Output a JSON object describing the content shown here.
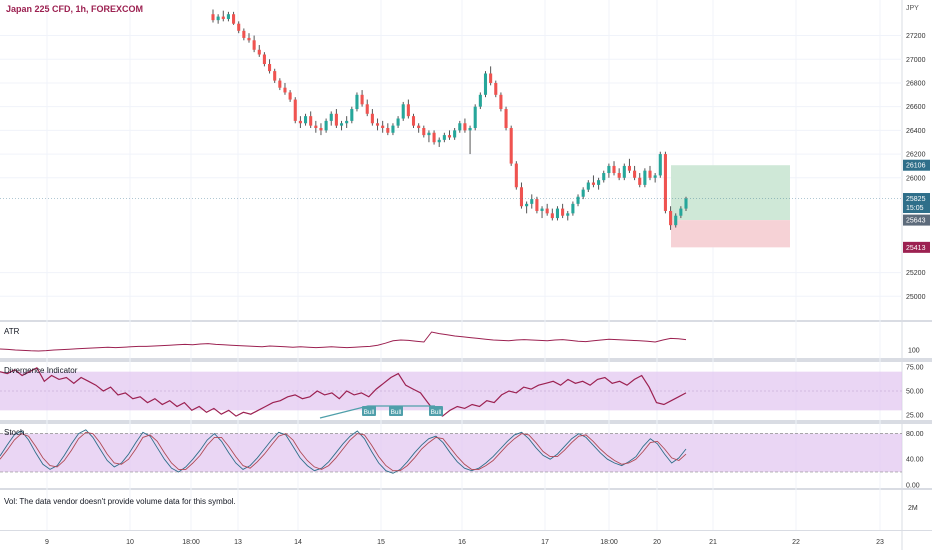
{
  "header": {
    "symbol_title": "Japan 225 CFD, 1h, FOREXCOM",
    "currency": "JPY"
  },
  "panes": {
    "atr": {
      "label": "ATR"
    },
    "divergence": {
      "label": "Divergence Indicator"
    },
    "stoch": {
      "label": "Stoch"
    },
    "volume": {
      "note": "Vol: The data vendor doesn't provide volume data for this symbol."
    }
  },
  "colors": {
    "up": "#26a69a",
    "down": "#ef5350",
    "wick": "#555555",
    "atr_line": "#9c2151",
    "div_line": "#9c2151",
    "stoch_k": "#2f6f8a",
    "stoch_d": "#b04a55",
    "band_fill": "#e1c4f0",
    "tp_zone": "#cfe8d7",
    "sl_zone": "#f6d2d6",
    "bull_label": "#4f9faa",
    "price_tag": "#2f6f8a",
    "sl_tag": "#9c2151"
  },
  "chart_data": [
    {
      "type": "candlestick",
      "title": "Japan 225 CFD, 1h, FOREXCOM",
      "ylim": [
        24800,
        27500
      ],
      "y_ticks": [
        "27200",
        "27000",
        "26800",
        "26600",
        "26400",
        "26200",
        "26000",
        "25200",
        "25000"
      ],
      "x_ticks": [
        "9",
        "10",
        "18:00",
        "13",
        "14",
        "15",
        "16",
        "17",
        "18:00",
        "20",
        "21",
        "22",
        "23"
      ],
      "price_tags": [
        {
          "value": "26106",
          "kind": "target"
        },
        {
          "value": "25825",
          "kind": "current"
        },
        {
          "value": "15:05",
          "kind": "timer"
        },
        {
          "value": "25643",
          "kind": "entry"
        },
        {
          "value": "25413",
          "kind": "stop"
        }
      ],
      "position": {
        "entry": 25643,
        "target": 26106,
        "stop": 25413
      },
      "candles": [
        [
          27380,
          27420,
          27310,
          27330
        ],
        [
          27330,
          27380,
          27300,
          27360
        ],
        [
          27360,
          27410,
          27320,
          27340
        ],
        [
          27340,
          27400,
          27320,
          27380
        ],
        [
          27380,
          27400,
          27290,
          27300
        ],
        [
          27300,
          27320,
          27220,
          27240
        ],
        [
          27240,
          27260,
          27160,
          27180
        ],
        [
          27180,
          27220,
          27140,
          27160
        ],
        [
          27160,
          27200,
          27060,
          27080
        ],
        [
          27080,
          27120,
          27020,
          27040
        ],
        [
          27040,
          27060,
          26940,
          26960
        ],
        [
          26960,
          27000,
          26880,
          26900
        ],
        [
          26900,
          26920,
          26800,
          26820
        ],
        [
          26820,
          26840,
          26740,
          26760
        ],
        [
          26760,
          26800,
          26700,
          26720
        ],
        [
          26720,
          26740,
          26640,
          26660
        ],
        [
          26660,
          26680,
          26460,
          26480
        ],
        [
          26480,
          26520,
          26420,
          26460
        ],
        [
          26460,
          26540,
          26440,
          26520
        ],
        [
          26520,
          26560,
          26420,
          26440
        ],
        [
          26440,
          26480,
          26380,
          26420
        ],
        [
          26420,
          26460,
          26360,
          26400
        ],
        [
          26400,
          26500,
          26380,
          26480
        ],
        [
          26480,
          26560,
          26440,
          26540
        ],
        [
          26540,
          26580,
          26420,
          26440
        ],
        [
          26440,
          26480,
          26400,
          26460
        ],
        [
          26460,
          26520,
          26420,
          26480
        ],
        [
          26480,
          26600,
          26460,
          26580
        ],
        [
          26580,
          26720,
          26560,
          26700
        ],
        [
          26700,
          26740,
          26600,
          26620
        ],
        [
          26620,
          26660,
          26520,
          26540
        ],
        [
          26540,
          26580,
          26440,
          26460
        ],
        [
          26460,
          26500,
          26400,
          26440
        ],
        [
          26440,
          26480,
          26380,
          26420
        ],
        [
          26420,
          26460,
          26360,
          26380
        ],
        [
          26380,
          26460,
          26360,
          26440
        ],
        [
          26440,
          26520,
          26420,
          26500
        ],
        [
          26500,
          26640,
          26480,
          26620
        ],
        [
          26620,
          26660,
          26500,
          26520
        ],
        [
          26520,
          26540,
          26420,
          26440
        ],
        [
          26440,
          26460,
          26380,
          26420
        ],
        [
          26420,
          26440,
          26340,
          26360
        ],
        [
          26360,
          26400,
          26300,
          26380
        ],
        [
          26380,
          26400,
          26280,
          26300
        ],
        [
          26300,
          26340,
          26260,
          26320
        ],
        [
          26320,
          26380,
          26300,
          26360
        ],
        [
          26360,
          26400,
          26320,
          26340
        ],
        [
          26340,
          26420,
          26320,
          26400
        ],
        [
          26400,
          26480,
          26380,
          26460
        ],
        [
          26460,
          26500,
          26380,
          26400
        ],
        [
          26400,
          26440,
          26200,
          26420
        ],
        [
          26420,
          26620,
          26400,
          26600
        ],
        [
          26600,
          26720,
          26580,
          26700
        ],
        [
          26700,
          26900,
          26680,
          26880
        ],
        [
          26880,
          26940,
          26780,
          26800
        ],
        [
          26800,
          26820,
          26680,
          26700
        ],
        [
          26700,
          26720,
          26560,
          26580
        ],
        [
          26580,
          26600,
          26400,
          26420
        ],
        [
          26420,
          26440,
          26100,
          26120
        ],
        [
          26120,
          26140,
          25900,
          25920
        ],
        [
          25920,
          25960,
          25740,
          25760
        ],
        [
          25760,
          25800,
          25700,
          25780
        ],
        [
          25780,
          25860,
          25740,
          25820
        ],
        [
          25820,
          25840,
          25700,
          25720
        ],
        [
          25720,
          25760,
          25660,
          25740
        ],
        [
          25740,
          25780,
          25680,
          25700
        ],
        [
          25700,
          25740,
          25640,
          25660
        ],
        [
          25660,
          25760,
          25640,
          25740
        ],
        [
          25740,
          25780,
          25660,
          25680
        ],
        [
          25680,
          25720,
          25640,
          25700
        ],
        [
          25700,
          25800,
          25680,
          25780
        ],
        [
          25780,
          25860,
          25760,
          25840
        ],
        [
          25840,
          25920,
          25820,
          25900
        ],
        [
          25900,
          25980,
          25880,
          25960
        ],
        [
          25960,
          26020,
          25920,
          25940
        ],
        [
          25940,
          26000,
          25900,
          25980
        ],
        [
          25980,
          26060,
          25960,
          26040
        ],
        [
          26040,
          26120,
          26000,
          26100
        ],
        [
          26100,
          26140,
          26020,
          26040
        ],
        [
          26040,
          26080,
          25980,
          26000
        ],
        [
          26000,
          26120,
          25980,
          26100
        ],
        [
          26100,
          26160,
          26040,
          26060
        ],
        [
          26060,
          26100,
          25980,
          26000
        ],
        [
          26000,
          26040,
          25920,
          25940
        ],
        [
          25940,
          26080,
          25920,
          26060
        ],
        [
          26060,
          26100,
          25980,
          26000
        ],
        [
          26000,
          26040,
          25960,
          26020
        ],
        [
          26020,
          26220,
          26000,
          26200
        ],
        [
          26200,
          26220,
          25700,
          25720
        ],
        [
          25720,
          25760,
          25560,
          25600
        ],
        [
          25600,
          25700,
          25580,
          25680
        ],
        [
          25680,
          25760,
          25660,
          25740
        ],
        [
          25740,
          25840,
          25720,
          25825
        ]
      ]
    },
    {
      "type": "line",
      "title": "ATR",
      "y_ticks": [
        "100"
      ],
      "ylim": [
        60,
        240
      ],
      "values": [
        105,
        103,
        100,
        98,
        96,
        95,
        97,
        100,
        102,
        104,
        106,
        108,
        110,
        112,
        114,
        112,
        114,
        116,
        118,
        118,
        120,
        122,
        124,
        126,
        128,
        126,
        130,
        132,
        128,
        126,
        124,
        122,
        120,
        118,
        116,
        120,
        118,
        116,
        114,
        116,
        114,
        112,
        114,
        116,
        114,
        112,
        114,
        116,
        118,
        124,
        134,
        146,
        150,
        148,
        144,
        140,
        190,
        182,
        176,
        170,
        166,
        162,
        158,
        154,
        150,
        148,
        146,
        150,
        152,
        150,
        148,
        146,
        150,
        152,
        148,
        144,
        142,
        146,
        150,
        154,
        152,
        150,
        148,
        146,
        144,
        140,
        150,
        158,
        156,
        152
      ]
    },
    {
      "type": "line",
      "title": "Divergence Indicator",
      "y_ticks": [
        "75.00",
        "50.00",
        "25.00"
      ],
      "ylim": [
        20,
        80
      ],
      "band": [
        30,
        70
      ],
      "values": [
        70,
        68,
        72,
        66,
        70,
        74,
        60,
        66,
        62,
        64,
        58,
        64,
        60,
        56,
        50,
        54,
        46,
        48,
        42,
        44,
        38,
        42,
        36,
        40,
        34,
        38,
        30,
        34,
        28,
        32,
        26,
        30,
        24,
        28,
        26,
        30,
        34,
        38,
        40,
        44,
        46,
        42,
        44,
        50,
        46,
        48,
        42,
        50,
        46,
        48,
        44,
        52,
        58,
        64,
        68,
        56,
        52,
        48,
        38,
        28,
        24,
        30,
        34,
        32,
        36,
        34,
        40,
        38,
        46,
        50,
        48,
        54,
        52,
        56,
        58,
        60,
        56,
        62,
        58,
        60,
        56,
        62,
        64,
        58,
        60,
        56,
        62,
        66,
        54,
        38,
        36,
        40,
        44,
        48
      ],
      "bull_labels": [
        "Bull",
        "Bull",
        "Bull"
      ]
    },
    {
      "type": "line",
      "title": "Stoch",
      "y_ticks": [
        "80.00",
        "40.00",
        "0.00"
      ],
      "ylim": [
        -5,
        95
      ],
      "band": [
        20,
        80
      ],
      "series": [
        {
          "values": [
            45,
            62,
            78,
            84,
            70,
            50,
            32,
            24,
            30,
            46,
            64,
            80,
            86,
            74,
            56,
            38,
            28,
            34,
            48,
            66,
            82,
            76,
            58,
            40,
            26,
            20,
            28,
            40,
            54,
            70,
            80,
            68,
            50,
            34,
            24,
            30,
            42,
            56,
            70,
            82,
            78,
            60,
            42,
            30,
            22,
            26,
            36,
            50,
            64,
            76,
            84,
            72,
            52,
            34,
            22,
            18,
            24,
            36,
            50,
            62,
            72,
            76,
            66,
            50,
            36,
            26,
            22,
            26,
            34,
            44,
            56,
            68,
            78,
            82,
            72,
            58,
            46,
            40,
            48,
            60,
            72,
            80,
            74,
            62,
            50,
            40,
            34,
            30,
            36,
            44,
            60,
            72,
            64,
            48,
            34,
            42,
            56
          ]
        },
        {
          "values": [
            40,
            54,
            70,
            80,
            76,
            60,
            42,
            30,
            28,
            38,
            54,
            72,
            82,
            80,
            66,
            48,
            34,
            32,
            40,
            56,
            74,
            78,
            68,
            50,
            34,
            24,
            24,
            34,
            46,
            62,
            74,
            74,
            60,
            44,
            30,
            26,
            36,
            48,
            62,
            76,
            80,
            70,
            52,
            38,
            28,
            24,
            30,
            42,
            56,
            70,
            80,
            78,
            62,
            44,
            30,
            22,
            22,
            30,
            42,
            56,
            66,
            74,
            72,
            58,
            44,
            32,
            24,
            24,
            30,
            38,
            50,
            62,
            72,
            80,
            78,
            66,
            52,
            44,
            44,
            54,
            66,
            76,
            78,
            68,
            56,
            46,
            38,
            32,
            34,
            40,
            52,
            66,
            68,
            56,
            42,
            38,
            48
          ]
        }
      ]
    },
    {
      "type": "bar",
      "title": "Vol",
      "y_ticks": [
        "2M"
      ]
    }
  ]
}
